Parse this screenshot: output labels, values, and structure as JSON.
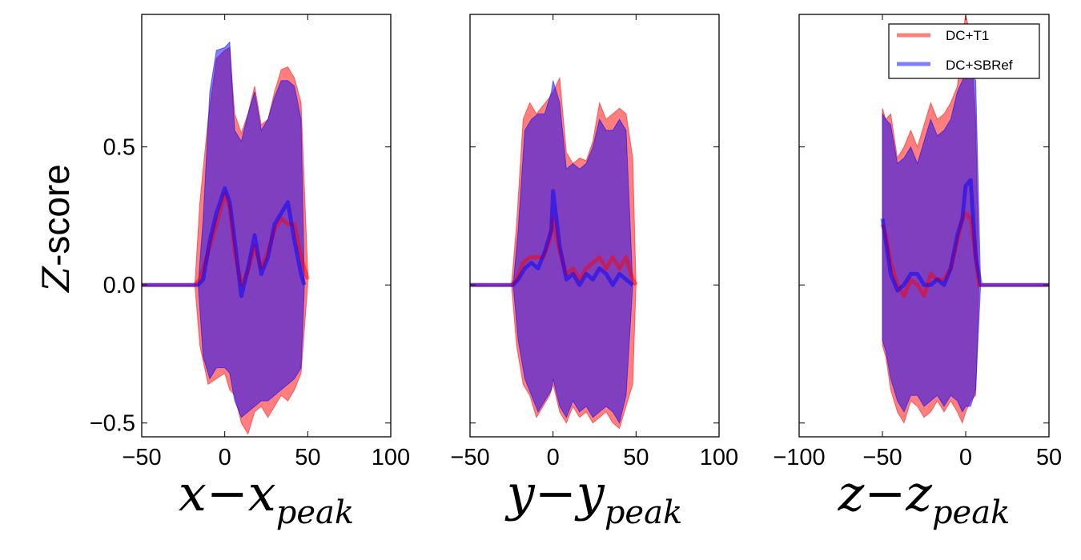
{
  "figure": {
    "ylabel_var": "Z",
    "ylabel_rest": "-score",
    "legend": {
      "placement": "top-right of third panel",
      "entries": [
        {
          "label": "DC+T1",
          "color": "#ff0000"
        },
        {
          "label": "DC+SBRef",
          "color": "#0000ff"
        }
      ]
    },
    "colors": {
      "dc_t1": "#ff0000",
      "dc_sbref": "#0000ff",
      "fill_alpha": 0.5
    }
  },
  "chart_data": [
    {
      "type": "area",
      "xlabel": {
        "var": "x",
        "sub": "peak"
      },
      "xlim": [
        -50,
        100
      ],
      "xticks": [
        -50,
        0,
        50,
        100
      ],
      "xtick_labels": [
        "−50",
        "0",
        "50",
        "100"
      ],
      "ylim": [
        -0.55,
        0.98
      ],
      "yticks": [
        -0.5,
        0.0,
        0.5
      ],
      "ytick_labels": [
        "−0.5",
        "0.0",
        "0.5"
      ],
      "grid": false,
      "series": [
        {
          "name": "DC+T1",
          "color": "#ff0000",
          "x": [
            -50,
            -18,
            -15,
            -10,
            -5,
            0,
            3,
            6,
            10,
            14,
            18,
            22,
            26,
            30,
            34,
            38,
            42,
            46,
            50
          ],
          "mean": [
            0,
            0,
            0.02,
            0.12,
            0.22,
            0.33,
            0.28,
            0.12,
            0.0,
            0.05,
            0.14,
            0.06,
            0.12,
            0.2,
            0.24,
            0.22,
            0.22,
            0.1,
            0.02
          ],
          "upper": [
            0,
            0,
            0.3,
            0.6,
            0.82,
            0.85,
            0.86,
            0.62,
            0.55,
            0.62,
            0.72,
            0.58,
            0.6,
            0.7,
            0.78,
            0.79,
            0.75,
            0.66,
            0.05
          ],
          "lower": [
            0,
            0,
            -0.22,
            -0.36,
            -0.34,
            -0.32,
            -0.38,
            -0.4,
            -0.5,
            -0.54,
            -0.46,
            -0.44,
            -0.48,
            -0.44,
            -0.4,
            -0.42,
            -0.38,
            -0.32,
            0
          ]
        },
        {
          "name": "DC+SBRef",
          "color": "#0000ff",
          "x": [
            -50,
            -16,
            -13,
            -9,
            -5,
            0,
            3,
            6,
            10,
            14,
            18,
            22,
            26,
            30,
            34,
            38,
            42,
            46,
            48
          ],
          "mean": [
            0,
            0,
            0.02,
            0.16,
            0.26,
            0.35,
            0.3,
            0.16,
            -0.04,
            0.06,
            0.18,
            0.04,
            0.1,
            0.22,
            0.26,
            0.3,
            0.16,
            0.04,
            0
          ],
          "upper": [
            0,
            0,
            0.24,
            0.7,
            0.85,
            0.86,
            0.88,
            0.56,
            0.52,
            0.62,
            0.7,
            0.56,
            0.6,
            0.68,
            0.74,
            0.74,
            0.72,
            0.6,
            0
          ],
          "lower": [
            0,
            0,
            -0.26,
            -0.34,
            -0.3,
            -0.3,
            -0.32,
            -0.42,
            -0.48,
            -0.46,
            -0.44,
            -0.42,
            -0.42,
            -0.4,
            -0.38,
            -0.36,
            -0.34,
            -0.3,
            0
          ]
        }
      ]
    },
    {
      "type": "area",
      "xlabel": {
        "var": "y",
        "sub": "peak"
      },
      "xlim": [
        -50,
        100
      ],
      "xticks": [
        -50,
        0,
        50,
        100
      ],
      "xtick_labels": [
        "−50",
        "0",
        "50",
        "100"
      ],
      "ylim": [
        -0.55,
        0.98
      ],
      "grid": false,
      "series": [
        {
          "name": "DC+T1",
          "color": "#ff0000",
          "x": [
            -50,
            -25,
            -22,
            -18,
            -14,
            -10,
            -6,
            -2,
            0,
            4,
            8,
            12,
            16,
            20,
            24,
            28,
            32,
            36,
            40,
            44,
            48,
            50
          ],
          "mean": [
            0,
            0,
            0.02,
            0.08,
            0.1,
            0.1,
            0.1,
            0.16,
            0.24,
            0.12,
            0.04,
            0.06,
            0.02,
            0.06,
            0.08,
            0.1,
            0.06,
            0.1,
            0.06,
            0.1,
            0.02,
            0
          ],
          "upper": [
            0,
            0,
            0.22,
            0.6,
            0.66,
            0.62,
            0.65,
            0.68,
            0.7,
            0.75,
            0.48,
            0.44,
            0.46,
            0.45,
            0.52,
            0.66,
            0.6,
            0.62,
            0.64,
            0.62,
            0.46,
            0
          ],
          "lower": [
            0,
            0,
            -0.22,
            -0.36,
            -0.4,
            -0.48,
            -0.44,
            -0.4,
            -0.36,
            -0.46,
            -0.5,
            -0.44,
            -0.48,
            -0.46,
            -0.5,
            -0.48,
            -0.46,
            -0.5,
            -0.52,
            -0.44,
            -0.36,
            0
          ]
        },
        {
          "name": "DC+SBRef",
          "color": "#0000ff",
          "x": [
            -50,
            -24,
            -21,
            -17,
            -13,
            -9,
            -5,
            -1,
            0,
            4,
            8,
            12,
            16,
            20,
            24,
            28,
            32,
            36,
            40,
            44,
            48
          ],
          "mean": [
            0,
            0,
            0.02,
            0.06,
            0.08,
            0.06,
            0.12,
            0.2,
            0.34,
            0.14,
            0.02,
            0.04,
            0.0,
            0.04,
            0.02,
            0.06,
            0.04,
            0.0,
            0.04,
            0.02,
            0
          ],
          "upper": [
            0,
            0,
            0.2,
            0.56,
            0.6,
            0.62,
            0.62,
            0.7,
            0.74,
            0.66,
            0.42,
            0.44,
            0.42,
            0.44,
            0.5,
            0.6,
            0.56,
            0.56,
            0.6,
            0.56,
            0
          ],
          "lower": [
            0,
            0,
            -0.2,
            -0.34,
            -0.4,
            -0.46,
            -0.42,
            -0.38,
            -0.34,
            -0.44,
            -0.48,
            -0.42,
            -0.46,
            -0.44,
            -0.48,
            -0.46,
            -0.44,
            -0.46,
            -0.5,
            -0.4,
            0
          ]
        }
      ]
    },
    {
      "type": "area",
      "xlabel": {
        "var": "z",
        "sub": "peak"
      },
      "xlim": [
        -100,
        50
      ],
      "xticks": [
        -100,
        -50,
        0,
        50
      ],
      "xtick_labels": [
        "−100",
        "−50",
        "0",
        "50"
      ],
      "ylim": [
        -0.55,
        0.98
      ],
      "grid": false,
      "series": [
        {
          "name": "DC+T1",
          "color": "#ff0000",
          "x": [
            -50,
            -48,
            -45,
            -41,
            -37,
            -33,
            -29,
            -25,
            -21,
            -17,
            -13,
            -9,
            -5,
            -2,
            0,
            3,
            6,
            8,
            50
          ],
          "mean": [
            0.22,
            0.18,
            0.08,
            0.0,
            -0.04,
            0.02,
            0.0,
            -0.04,
            0.04,
            0.02,
            0.02,
            0.06,
            0.16,
            0.24,
            0.26,
            0.24,
            0.1,
            0.0,
            0
          ],
          "upper": [
            0.64,
            0.6,
            0.62,
            0.46,
            0.5,
            0.56,
            0.5,
            0.58,
            0.66,
            0.6,
            0.62,
            0.66,
            0.72,
            0.9,
            0.98,
            0.9,
            0.6,
            0.0,
            0
          ],
          "lower": [
            -0.22,
            -0.26,
            -0.38,
            -0.46,
            -0.5,
            -0.42,
            -0.44,
            -0.48,
            -0.46,
            -0.42,
            -0.46,
            -0.42,
            -0.46,
            -0.5,
            -0.46,
            -0.42,
            -0.4,
            0.0,
            0
          ]
        },
        {
          "name": "DC+SBRef",
          "color": "#0000ff",
          "x": [
            -50,
            -48,
            -45,
            -41,
            -37,
            -33,
            -29,
            -25,
            -21,
            -17,
            -13,
            -9,
            -5,
            -2,
            0,
            3,
            6,
            9,
            50
          ],
          "mean": [
            0.24,
            0.16,
            0.04,
            -0.02,
            0.0,
            0.04,
            0.04,
            0.0,
            0.0,
            0.02,
            0.0,
            0.06,
            0.18,
            0.24,
            0.36,
            0.38,
            0.1,
            0.0,
            0
          ],
          "upper": [
            0.62,
            0.6,
            0.58,
            0.44,
            0.46,
            0.5,
            0.44,
            0.52,
            0.6,
            0.54,
            0.56,
            0.6,
            0.7,
            0.74,
            0.76,
            0.78,
            0.74,
            0.0,
            0
          ],
          "lower": [
            -0.2,
            -0.24,
            -0.34,
            -0.42,
            -0.46,
            -0.4,
            -0.4,
            -0.44,
            -0.42,
            -0.4,
            -0.44,
            -0.4,
            -0.42,
            -0.46,
            -0.44,
            -0.44,
            -0.38,
            0.0,
            0
          ]
        }
      ]
    }
  ]
}
